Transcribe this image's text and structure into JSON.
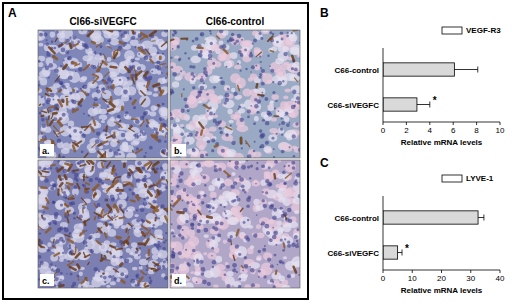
{
  "panel_a": {
    "label": "A",
    "columns": [
      "Cl66-siVEGFC",
      "Cl66-control"
    ],
    "images": [
      "a.",
      "b.",
      "c.",
      "d."
    ]
  },
  "chart_data": [
    {
      "type": "bar",
      "panel_label": "B",
      "orientation": "horizontal",
      "categories": [
        "C66-control",
        "C66-siVEGFC"
      ],
      "series": [
        {
          "name": "VEGF-R3",
          "color": "#d9d9d9",
          "values": [
            6.1,
            2.9
          ],
          "errors": [
            2.0,
            1.1
          ]
        }
      ],
      "significance": [
        null,
        "*"
      ],
      "x_label": "Relative mRNA levels",
      "xlim": [
        0,
        10
      ],
      "xticks": [
        0,
        2,
        4,
        6,
        8,
        10
      ],
      "grid": false,
      "legend": "upper right"
    },
    {
      "type": "bar",
      "panel_label": "C",
      "orientation": "horizontal",
      "categories": [
        "C66-control",
        "C66-siVEGFC"
      ],
      "series": [
        {
          "name": "LYVE-1",
          "color": "#d9d9d9",
          "values": [
            32.5,
            5.0
          ],
          "errors": [
            2.0,
            1.5
          ]
        }
      ],
      "significance": [
        null,
        "*"
      ],
      "x_label": "Relative mRNA levels",
      "xlim": [
        0,
        40
      ],
      "xticks": [
        0,
        10,
        20,
        30,
        40
      ],
      "grid": false,
      "legend": "upper right"
    }
  ]
}
